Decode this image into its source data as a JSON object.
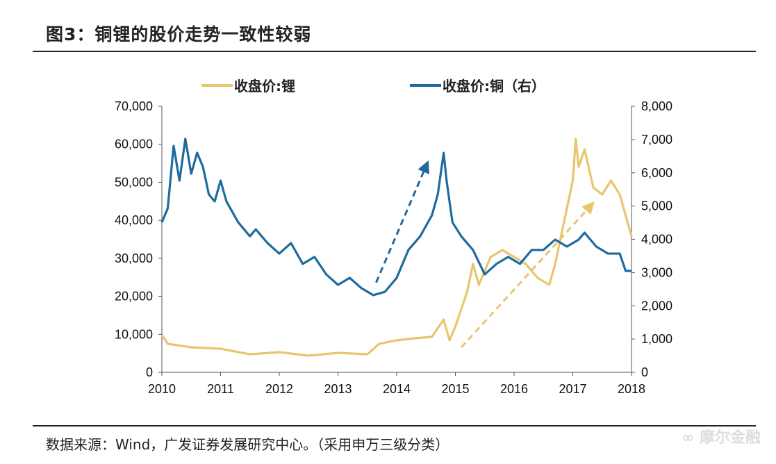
{
  "title": "图3：铜锂的股价走势一致性较弱",
  "source": "数据来源：Wind，广发证券发展研究中心。（采用申万三级分类）",
  "watermark": "摩尔金融",
  "chart_data": {
    "type": "line",
    "title": "图3：铜锂的股价走势一致性较弱",
    "legend_position": "top",
    "grid": false,
    "x_ticks": [
      "2010",
      "2011",
      "2012",
      "2013",
      "2014",
      "2015",
      "2016",
      "2017",
      "2018"
    ],
    "xlim": [
      2010,
      2018
    ],
    "y_left": {
      "lim": [
        0,
        70000
      ],
      "ticks": [
        "0",
        "10,000",
        "20,000",
        "30,000",
        "40,000",
        "50,000",
        "60,000",
        "70,000"
      ]
    },
    "y_right": {
      "lim": [
        0,
        8000
      ],
      "ticks": [
        "0",
        "1,000",
        "2,000",
        "3,000",
        "4,000",
        "5,000",
        "6,000",
        "7,000",
        "8,000"
      ]
    },
    "series": [
      {
        "name": "收盘价:锂",
        "axis": "left",
        "color": "#E8C66E",
        "x": [
          2010.0,
          2010.1,
          2010.5,
          2011,
          2011.5,
          2012,
          2012.5,
          2013,
          2013.5,
          2013.7,
          2014,
          2014.3,
          2014.6,
          2014.8,
          2014.9,
          2015,
          2015.2,
          2015.3,
          2015.4,
          2015.6,
          2015.8,
          2016,
          2016.2,
          2016.4,
          2016.6,
          2016.7,
          2016.8,
          2016.9,
          2017.0,
          2017.05,
          2017.1,
          2017.2,
          2017.35,
          2017.5,
          2017.65,
          2017.8,
          2017.9,
          2018
        ],
        "y": [
          9870,
          7490,
          6580,
          6210,
          4750,
          5300,
          4390,
          5120,
          4750,
          7490,
          8410,
          8960,
          9320,
          13890,
          8410,
          12060,
          21200,
          28510,
          23030,
          30340,
          32160,
          30340,
          28510,
          24860,
          23030,
          28510,
          35830,
          43140,
          50450,
          61410,
          54100,
          58670,
          48620,
          46790,
          50450,
          46790,
          41300,
          35830
        ]
      },
      {
        "name": "收盘价:铜（右）",
        "axis": "right",
        "color": "#1F6B9E",
        "x": [
          2010.0,
          2010.1,
          2010.2,
          2010.3,
          2010.4,
          2010.5,
          2010.6,
          2010.7,
          2010.8,
          2010.9,
          2011.0,
          2011.1,
          2011.3,
          2011.5,
          2011.6,
          2011.8,
          2012.0,
          2012.2,
          2012.4,
          2012.6,
          2012.8,
          2013.0,
          2013.2,
          2013.4,
          2013.6,
          2013.8,
          2014.0,
          2014.2,
          2014.4,
          2014.6,
          2014.7,
          2014.8,
          2014.85,
          2014.95,
          2015.1,
          2015.3,
          2015.5,
          2015.7,
          2015.9,
          2016.1,
          2016.3,
          2016.5,
          2016.7,
          2016.9,
          2017.1,
          2017.2,
          2017.4,
          2017.6,
          2017.8,
          2017.9,
          2018
        ],
        "y": [
          4510,
          4930,
          6810,
          5765,
          7020,
          5970,
          6600,
          6180,
          5350,
          5140,
          5765,
          5140,
          4510,
          4090,
          4300,
          3885,
          3570,
          3885,
          3260,
          3470,
          2945,
          2630,
          2840,
          2530,
          2320,
          2420,
          2840,
          3680,
          4090,
          4720,
          5350,
          6600,
          5765,
          4510,
          4090,
          3680,
          2945,
          3260,
          3470,
          3260,
          3680,
          3680,
          3990,
          3780,
          3990,
          4200,
          3780,
          3570,
          3570,
          3050,
          3050
        ]
      }
    ],
    "annotations": [
      {
        "type": "dashed-arrow",
        "axis": "right",
        "color": "#1F6B9E",
        "from": [
          2013.65,
          2700
        ],
        "to": [
          2014.5,
          6200
        ]
      },
      {
        "type": "dashed-arrow",
        "axis": "right",
        "color": "#E8C66E",
        "from": [
          2015.1,
          750
        ],
        "to": [
          2017.3,
          5000
        ]
      }
    ]
  }
}
